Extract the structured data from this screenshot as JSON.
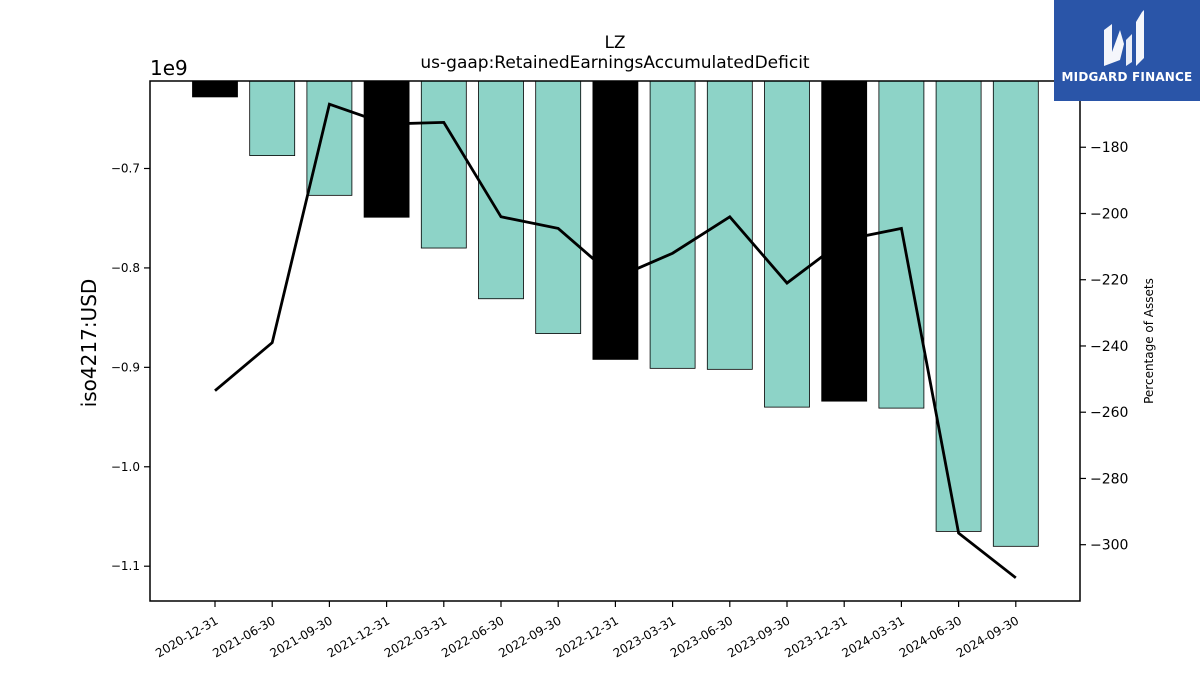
{
  "chart_data": {
    "type": "bar",
    "title": "LZ",
    "subtitle": "us-gaap:RetainedEarningsAccumulatedDeficit",
    "ylabel": "iso4217:USD",
    "y_scale_label": "1e9",
    "y2label": "Percentage of Assets",
    "categories": [
      "2020-12-31",
      "2021-06-30",
      "2021-09-30",
      "2021-12-31",
      "2022-03-31",
      "2022-06-30",
      "2022-09-30",
      "2022-12-31",
      "2023-03-31",
      "2023-06-30",
      "2023-09-30",
      "2023-12-31",
      "2024-03-31",
      "2024-06-30",
      "2024-09-30"
    ],
    "series": [
      {
        "type": "bar",
        "values": [
          -0.628,
          -0.687,
          -0.727,
          -0.749,
          -0.78,
          -0.831,
          -0.866,
          -0.892,
          -0.901,
          -0.902,
          -0.94,
          -0.934,
          -0.941,
          -1.065,
          -1.08
        ],
        "highlight": [
          true,
          false,
          false,
          true,
          false,
          false,
          false,
          true,
          false,
          false,
          false,
          true,
          false,
          false,
          false
        ],
        "colors": {
          "normal": "#8dd3c7",
          "highlight": "#000000"
        }
      },
      {
        "type": "line",
        "axis": "right",
        "values": [
          -253.5,
          -239.0,
          -167.0,
          -173.0,
          -172.5,
          -201.0,
          -204.5,
          -219.5,
          -212.0,
          -201.0,
          -221.0,
          -208.0,
          -204.5,
          -296.5,
          -310.0
        ],
        "color": "#000000"
      }
    ],
    "ylim": [
      -1.135,
      -0.612
    ],
    "yticks": [
      -0.7,
      -0.8,
      -0.9,
      -1.0,
      -1.1
    ],
    "ytick_labels": [
      "−0.7",
      "−0.8",
      "−0.9",
      "−1.0",
      "−1.1"
    ],
    "y2lim": [
      -317.0,
      -160.0
    ],
    "y2ticks": [
      -180,
      -200,
      -220,
      -240,
      -260,
      -280,
      -300
    ],
    "y2tick_labels": [
      "−180",
      "−200",
      "−220",
      "−240",
      "−260",
      "−280",
      "−300"
    ]
  },
  "logo": {
    "text": "MIDGARD FINANCE",
    "color": "#2a55a8"
  }
}
